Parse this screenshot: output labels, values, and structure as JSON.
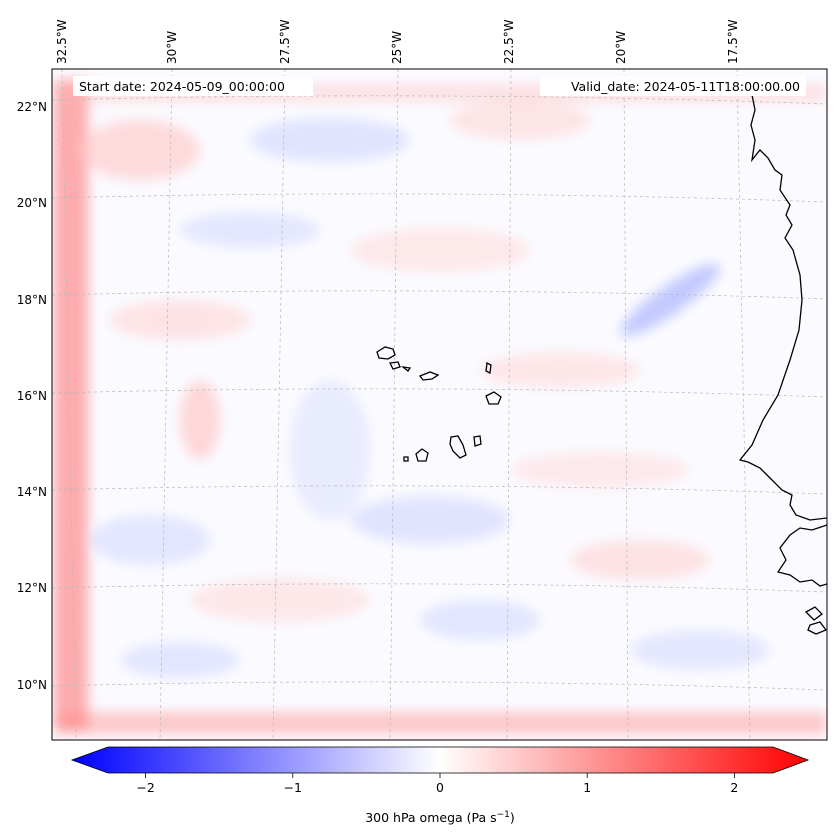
{
  "map": {
    "start_date": "Start date: 2024-05-09_00:00:00",
    "valid_date": "Valid_date: 2024-05-11T18:00:00.00",
    "lon_labels": [
      "32.5°W",
      "30°W",
      "27.5°W",
      "25°W",
      "22.5°W",
      "20°W",
      "17.5°W"
    ],
    "lat_labels": [
      "22°N",
      "20°N",
      "18°N",
      "16°N",
      "14°N",
      "12°N",
      "10°N"
    ],
    "colors": {
      "negative": "#0000ff",
      "positive": "#ff0000",
      "neutral": "#ffffff",
      "coastline": "#000000",
      "gridline": "#b0b0b0"
    }
  },
  "colorbar": {
    "tick_labels": [
      "−2",
      "−1",
      "0",
      "1",
      "2"
    ],
    "tick_values": [
      -2,
      -1,
      0,
      1,
      2
    ],
    "vmin": -2.5,
    "vmax": 2.5,
    "label_main": "300 hPa omega (Pa s",
    "label_exp": "−1",
    "label_end": ")"
  }
}
